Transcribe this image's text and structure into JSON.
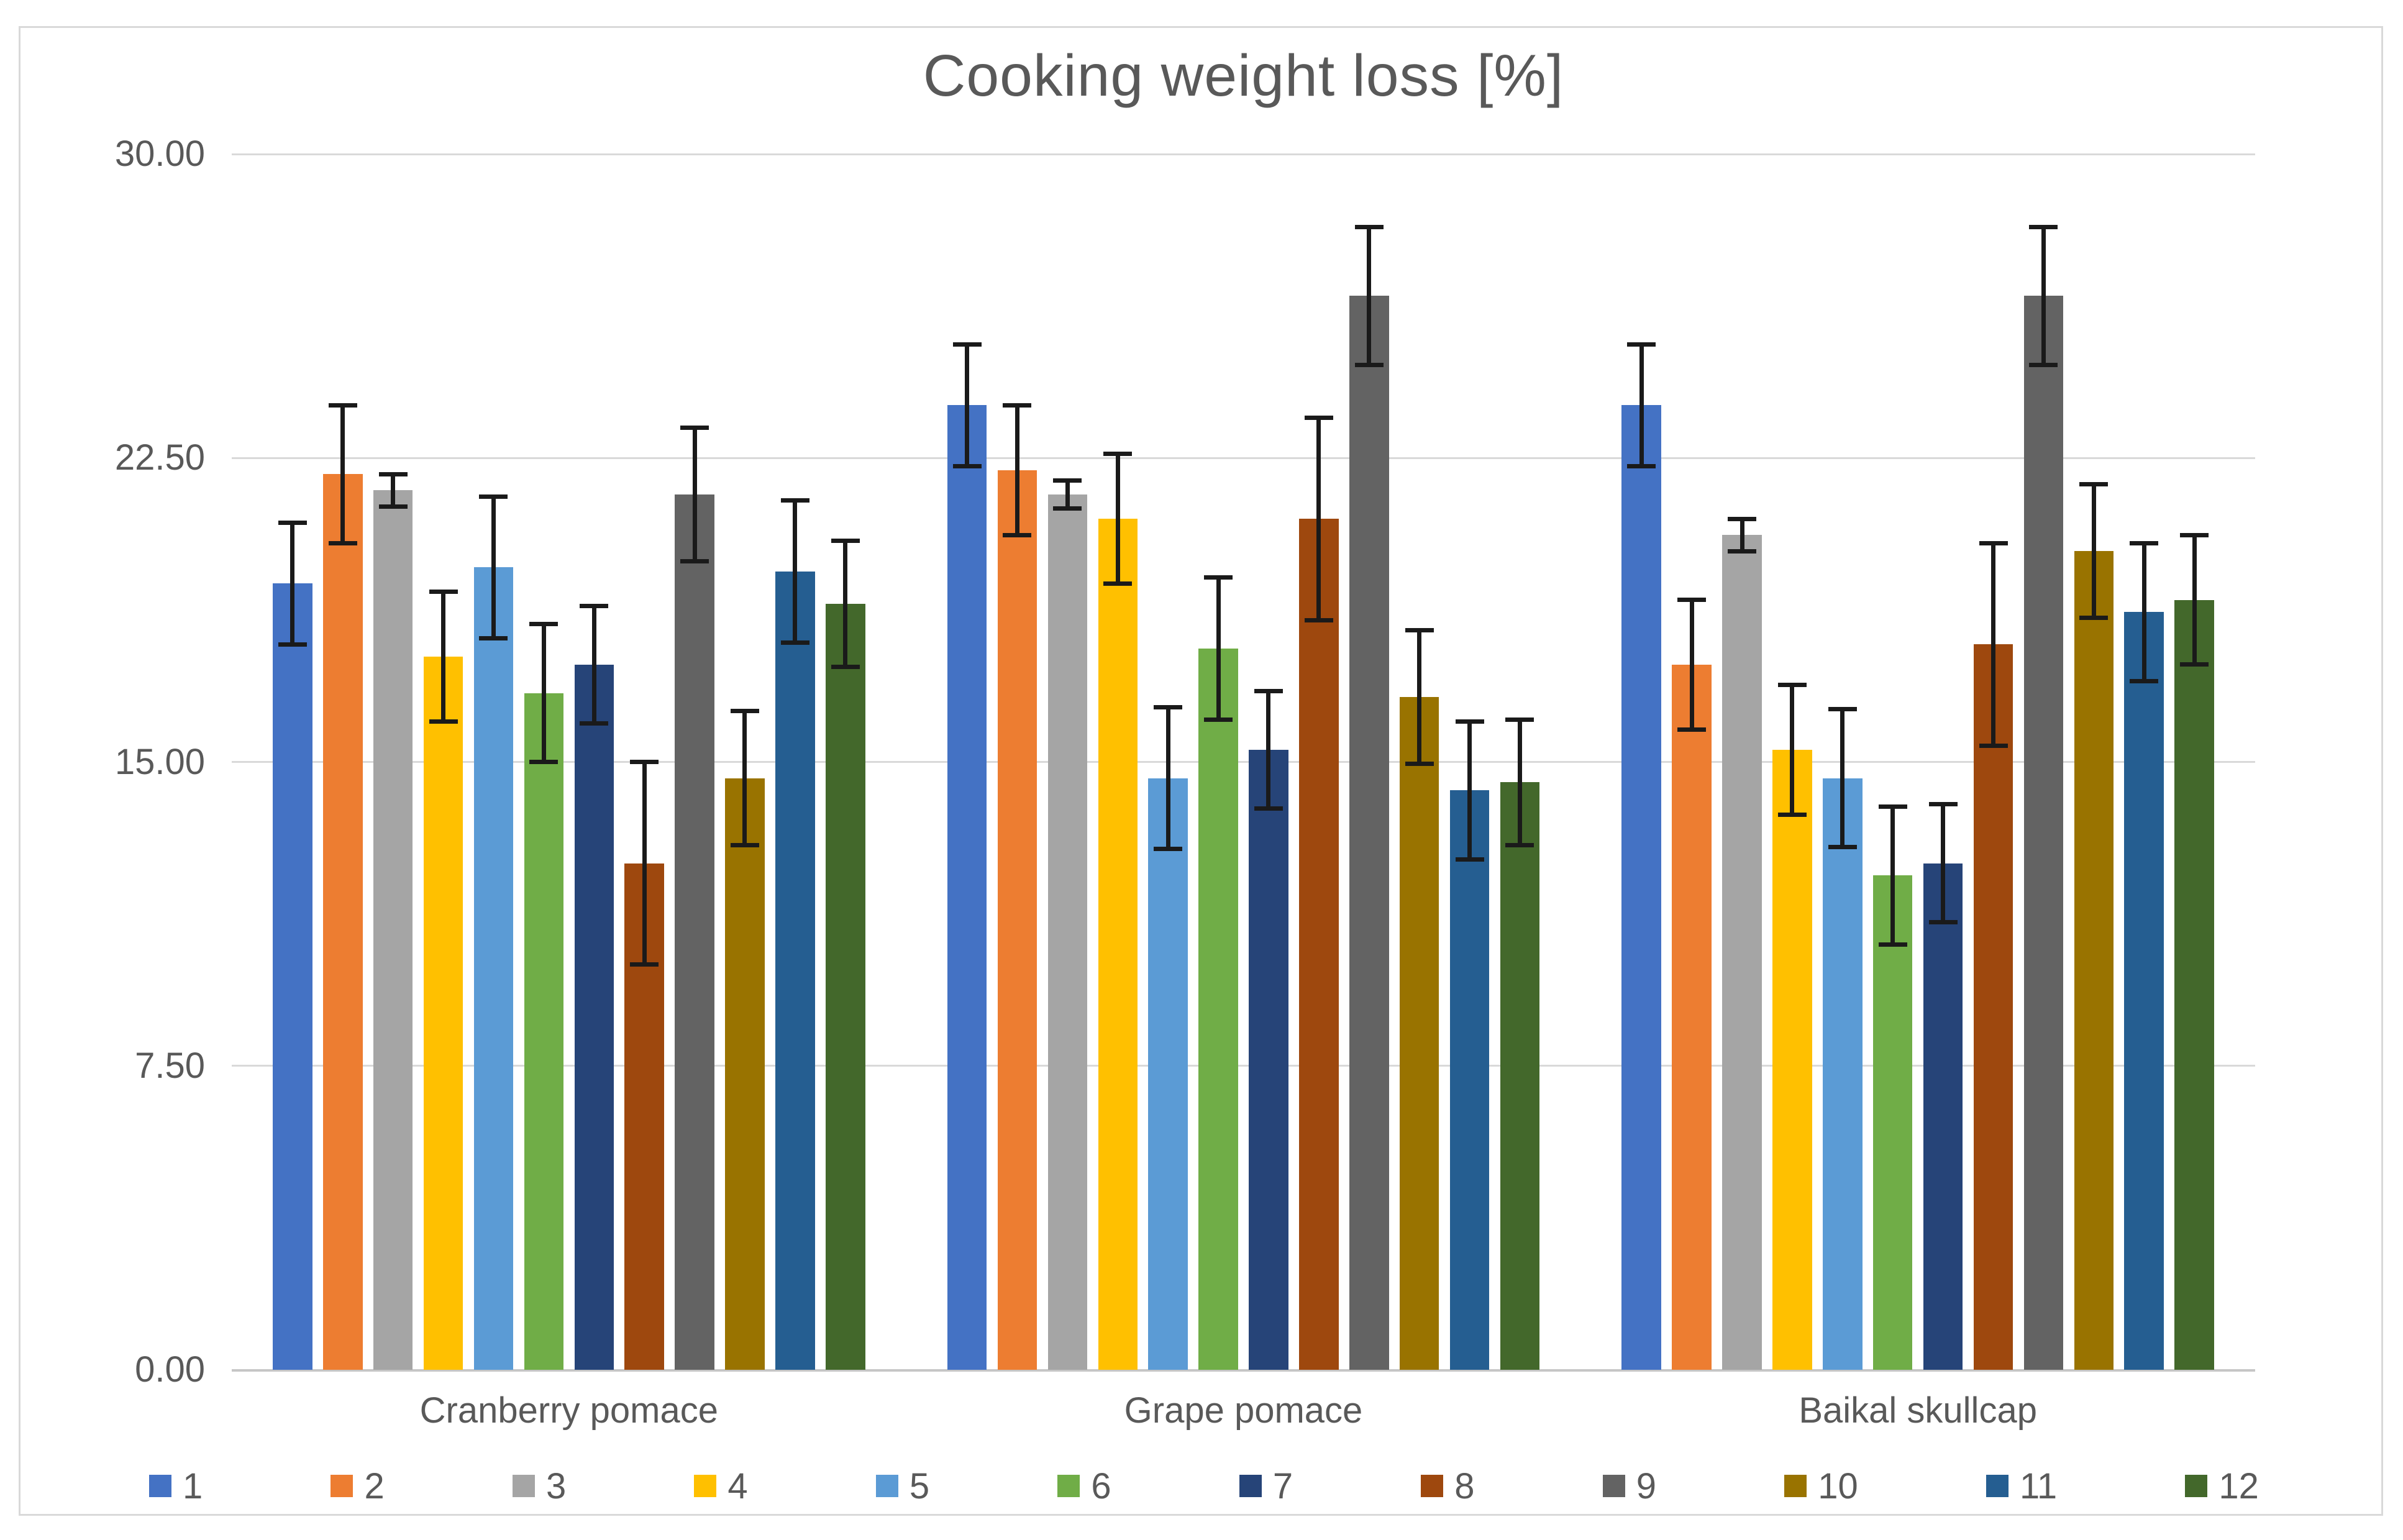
{
  "chart_data": {
    "type": "bar",
    "title": "Cooking weight loss [%]",
    "xlabel": "",
    "ylabel": "",
    "ylim": [
      0,
      30
    ],
    "grid": true,
    "legend_position": "bottom",
    "yticks": [
      {
        "value": 0,
        "label": "0.00"
      },
      {
        "value": 7.5,
        "label": "7.50"
      },
      {
        "value": 15,
        "label": "15.00"
      },
      {
        "value": 22.5,
        "label": "22.50"
      },
      {
        "value": 30,
        "label": "30.00"
      }
    ],
    "categories": [
      "Cranberry pomace",
      "Grape pomace",
      "Baikal skullcap"
    ],
    "series": [
      {
        "name": "1",
        "color": "#4472C4",
        "values": [
          19.4,
          23.8,
          23.8
        ],
        "errors": [
          1.5,
          1.5,
          1.5
        ]
      },
      {
        "name": "2",
        "color": "#ED7D31",
        "values": [
          22.1,
          22.2,
          17.4
        ],
        "errors": [
          1.7,
          1.6,
          1.6
        ]
      },
      {
        "name": "3",
        "color": "#A5A5A5",
        "values": [
          21.7,
          21.6,
          20.6
        ],
        "errors": [
          0.4,
          0.35,
          0.4
        ]
      },
      {
        "name": "4",
        "color": "#FFC000",
        "values": [
          17.6,
          21.0,
          15.3
        ],
        "errors": [
          1.6,
          1.6,
          1.6
        ]
      },
      {
        "name": "5",
        "color": "#5B9BD5",
        "values": [
          19.8,
          14.6,
          14.6
        ],
        "errors": [
          1.75,
          1.75,
          1.7
        ]
      },
      {
        "name": "6",
        "color": "#70AD47",
        "values": [
          16.7,
          17.8,
          12.2
        ],
        "errors": [
          1.7,
          1.75,
          1.7
        ]
      },
      {
        "name": "7",
        "color": "#264478",
        "values": [
          17.4,
          15.3,
          12.5
        ],
        "errors": [
          1.45,
          1.45,
          1.45
        ]
      },
      {
        "name": "8",
        "color": "#9E480E",
        "values": [
          12.5,
          21.0,
          17.9
        ],
        "errors": [
          2.5,
          2.5,
          2.5
        ]
      },
      {
        "name": "9",
        "color": "#636363",
        "values": [
          21.6,
          26.5,
          26.5
        ],
        "errors": [
          1.65,
          1.7,
          1.7
        ]
      },
      {
        "name": "10",
        "color": "#997300",
        "values": [
          14.6,
          16.6,
          20.2
        ],
        "errors": [
          1.65,
          1.65,
          1.65
        ]
      },
      {
        "name": "11",
        "color": "#255E91",
        "values": [
          19.7,
          14.3,
          18.7
        ],
        "errors": [
          1.75,
          1.7,
          1.7
        ]
      },
      {
        "name": "12",
        "color": "#43682B",
        "values": [
          18.9,
          14.5,
          19.0
        ],
        "errors": [
          1.55,
          1.55,
          1.6
        ]
      }
    ],
    "style": {
      "text_color": "#595959",
      "gridline_color": "#D9D9D9",
      "axis_line_color": "#C6C6C6",
      "error_bar_color": "#1A1A1A",
      "frame_border_color": "#D9D9D9",
      "background": "#FFFFFF"
    }
  }
}
